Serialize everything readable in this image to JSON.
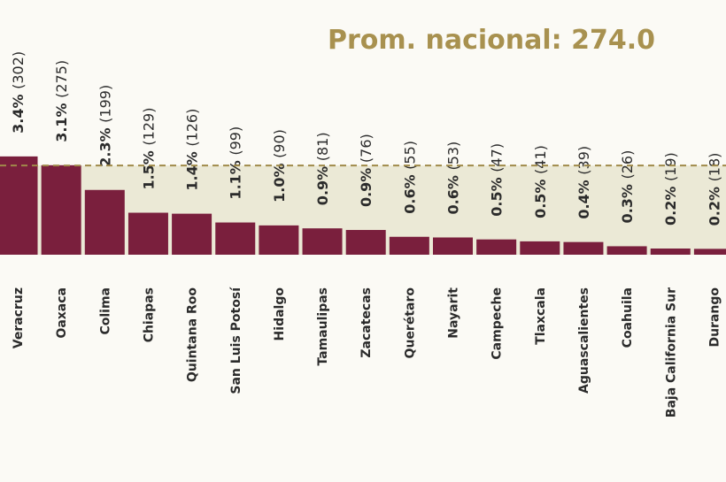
{
  "chart_data": {
    "type": "bar",
    "average_label": "Prom. nacional: 274.0",
    "average": 274.0,
    "categories": [
      "Veracruz",
      "Oaxaca",
      "Colima",
      "Chiapas",
      "Quintana Roo",
      "San Luis Potosí",
      "Hidalgo",
      "Tamaulipas",
      "Zacatecas",
      "Querétaro",
      "Nayarit",
      "Campeche",
      "Tlaxcala",
      "Aguascalientes",
      "Coahuila",
      "Baja California Sur",
      "Durango"
    ],
    "values": [
      302,
      275,
      199,
      129,
      126,
      99,
      90,
      81,
      76,
      55,
      53,
      47,
      41,
      39,
      26,
      19,
      18
    ],
    "value_labels": [
      "3.4% (302)",
      "3.1% (275)",
      "2.3% (199)",
      "1.5% (129)",
      "1.4% (126)",
      "1.1% (99)",
      "1.0% (90)",
      "0.9% (81)",
      "0.9% (76)",
      "0.6% (55)",
      "0.6% (53)",
      "0.5% (47)",
      "0.5% (41)",
      "0.4% (39)",
      "0.3% (26)",
      "0.2% (19)",
      "0.2% (18)"
    ],
    "color": "#7a1f3d"
  }
}
